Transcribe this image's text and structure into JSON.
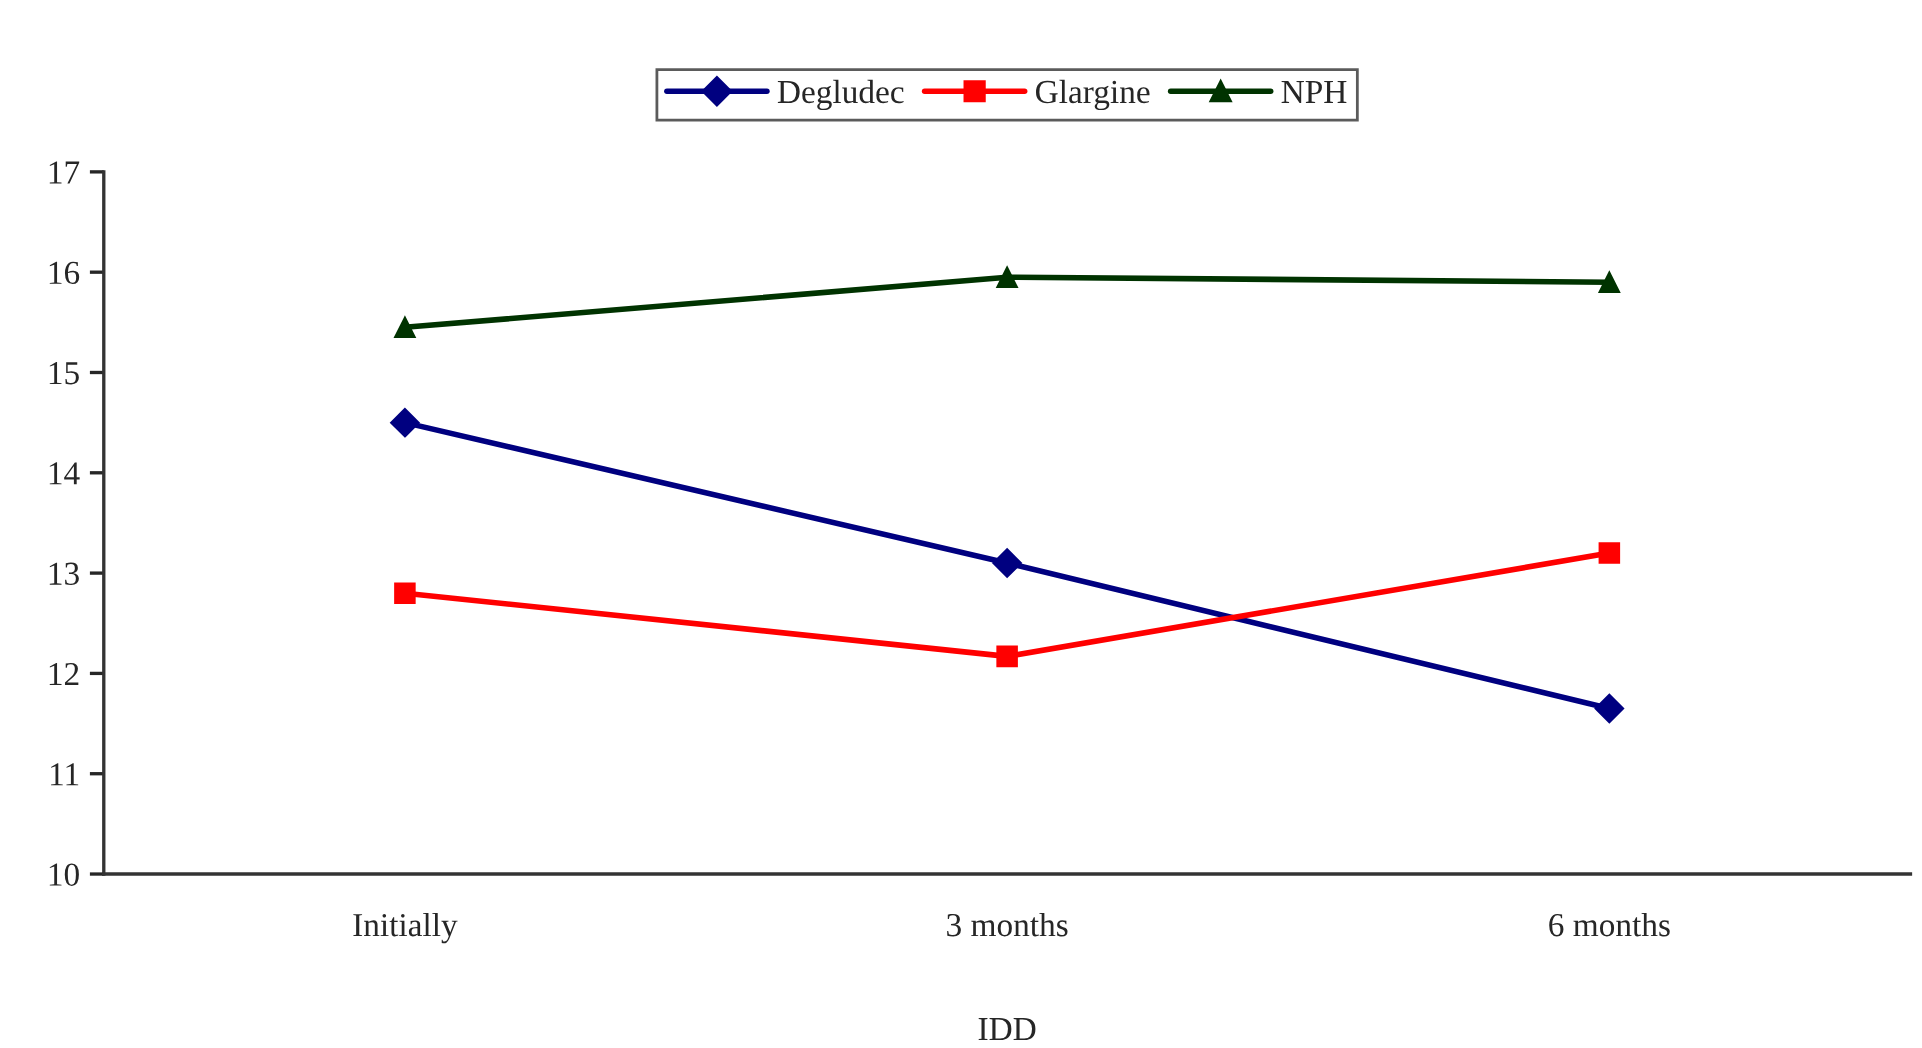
{
  "chart_data": {
    "type": "line",
    "xlabel": "IDD",
    "categories": [
      "Initially",
      "3 months",
      "6 months"
    ],
    "series": [
      {
        "name": "Degludec",
        "color": "#000080",
        "values": [
          14.5,
          13.1,
          11.65
        ],
        "marker": "diamond"
      },
      {
        "name": "Glargine",
        "color": "#ff0000",
        "values": [
          12.8,
          12.17,
          13.2
        ],
        "marker": "square"
      },
      {
        "name": "NPH",
        "color": "#003300",
        "values": [
          15.45,
          15.95,
          15.9
        ],
        "marker": "triangle"
      }
    ],
    "ylim": [
      10,
      17
    ],
    "yticks": [
      10,
      11,
      12,
      13,
      14,
      15,
      16,
      17
    ],
    "grid": false,
    "legend": "top"
  }
}
